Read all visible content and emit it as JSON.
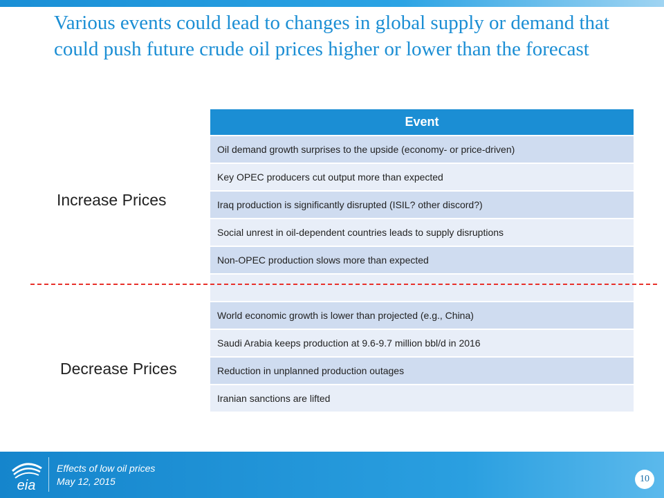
{
  "slide": {
    "title": "Various events could lead to changes in global supply or demand that could push future crude oil prices higher or lower than the forecast"
  },
  "labels": {
    "increase": "Increase Prices",
    "decrease": "Decrease Prices"
  },
  "table": {
    "header": "Event",
    "increase_rows": [
      "Oil demand growth surprises to the upside  (economy- or price-driven)",
      "Key OPEC producers cut output more than expected",
      "Iraq production is significantly disrupted (ISIL?  other discord?)",
      "Social unrest in oil-dependent countries leads to supply disruptions",
      "Non-OPEC production slows more than expected"
    ],
    "spacer_row": "",
    "decrease_rows": [
      "World economic growth is lower than projected (e.g., China)",
      "Saudi Arabia keeps production at 9.6-9.7 million bbl/d in 2016",
      "Reduction in unplanned production outages",
      "Iranian sanctions are lifted"
    ]
  },
  "footer": {
    "logo_text": "eia",
    "topic": "Effects of low oil prices",
    "date": "May 12, 2015",
    "page_number": "10"
  },
  "colors": {
    "accent": "#1b8ed4",
    "row_dark": "#cfdcf0",
    "row_light": "#e8eef8",
    "divider": "#e8302a"
  }
}
